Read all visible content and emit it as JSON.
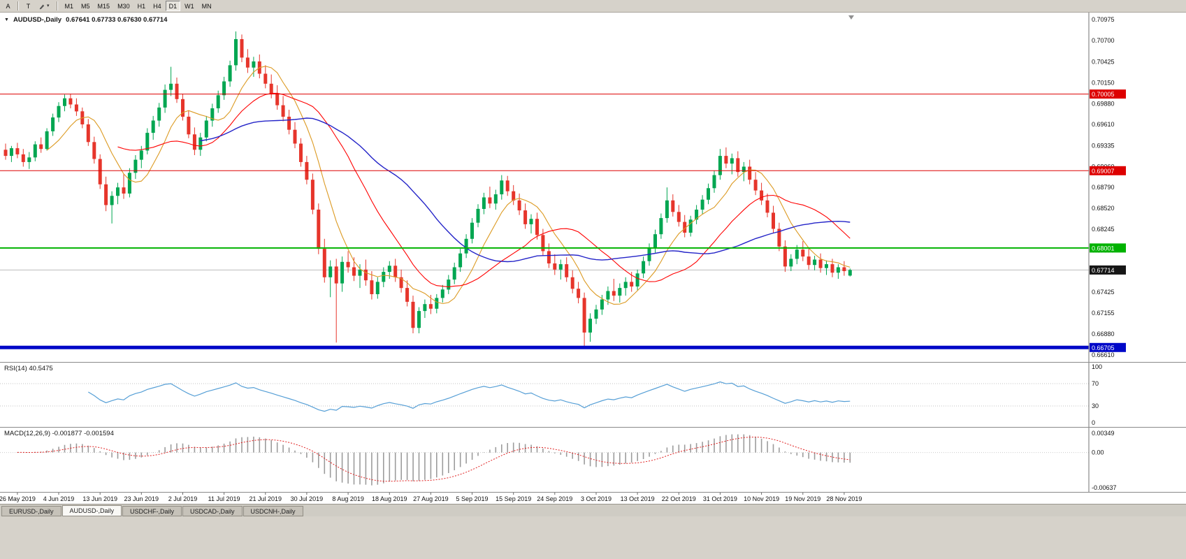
{
  "toolbar": {
    "button_a": "A",
    "button_t": "T",
    "dropdown_arrow": "▾",
    "timeframes": [
      "M1",
      "M5",
      "M15",
      "M30",
      "H1",
      "H4",
      "D1",
      "W1",
      "MN"
    ],
    "active_timeframe": "D1"
  },
  "chart": {
    "collapse_arrow": "▼",
    "symbol_title": "AUDUSD-,Daily",
    "ohlc": "0.67641 0.67733 0.67630 0.67714",
    "price_axis_labels": [
      "0.70975",
      "0.70700",
      "0.70425",
      "0.70150",
      "0.69880",
      "0.69610",
      "0.69335",
      "0.69060",
      "0.68790",
      "0.68520",
      "0.68245",
      "0.67970",
      "0.67700",
      "0.67425",
      "0.67155",
      "0.66880",
      "0.66610"
    ],
    "levels": [
      {
        "price": 0.70005,
        "label": "0.70005",
        "color": "#dd0000",
        "width": 1
      },
      {
        "price": 0.69007,
        "label": "0.69007",
        "color": "#dd0000",
        "width": 1
      },
      {
        "price": 0.68001,
        "label": "0.68001",
        "color": "#00b200",
        "width": 2
      },
      {
        "price": 0.66705,
        "label": "0.66705",
        "color": "#0008c8",
        "width": 5
      }
    ],
    "current_price": {
      "price": 0.67714,
      "label": "0.67714"
    },
    "colors": {
      "up": "#00a651",
      "down": "#e6352b",
      "ma_fast": "#dc9a22",
      "ma_mid": "#ff0000",
      "ma_slow": "#2424c8"
    }
  },
  "chart_data": {
    "type": "candlestick",
    "symbol": "AUDUSD",
    "timeframe": "Daily",
    "y_axis_range": [
      0.66335,
      0.70975
    ],
    "ohlc_format": [
      "open",
      "high",
      "low",
      "close"
    ],
    "x_tick_labels": [
      "26 May 2019",
      "4 Jun 2019",
      "13 Jun 2019",
      "23 Jun 2019",
      "2 Jul 2019",
      "11 Jul 2019",
      "21 Jul 2019",
      "30 Jul 2019",
      "8 Aug 2019",
      "18 Aug 2019",
      "27 Aug 2019",
      "5 Sep 2019",
      "15 Sep 2019",
      "24 Sep 2019",
      "3 Oct 2019",
      "13 Oct 2019",
      "22 Oct 2019",
      "31 Oct 2019",
      "10 Nov 2019",
      "19 Nov 2019",
      "28 Nov 2019"
    ],
    "x_tick_start_index": 2,
    "x_tick_every": 7,
    "indicators": {
      "ma_fast": 8,
      "ma_mid": 20,
      "ma_slow": 34
    },
    "candles": [
      [
        0.6928,
        0.6936,
        0.6915,
        0.692
      ],
      [
        0.692,
        0.6933,
        0.6912,
        0.693
      ],
      [
        0.693,
        0.6937,
        0.6917,
        0.6922
      ],
      [
        0.6922,
        0.6929,
        0.6906,
        0.6912
      ],
      [
        0.6912,
        0.6925,
        0.6903,
        0.6918
      ],
      [
        0.6918,
        0.6939,
        0.6913,
        0.6935
      ],
      [
        0.6935,
        0.6944,
        0.6924,
        0.6929
      ],
      [
        0.6929,
        0.6956,
        0.6927,
        0.6952
      ],
      [
        0.6952,
        0.6975,
        0.6946,
        0.697
      ],
      [
        0.697,
        0.699,
        0.6964,
        0.6985
      ],
      [
        0.6985,
        0.7,
        0.6978,
        0.6995
      ],
      [
        0.6995,
        0.7001,
        0.6982,
        0.6987
      ],
      [
        0.6987,
        0.6995,
        0.6972,
        0.6978
      ],
      [
        0.6978,
        0.6983,
        0.6956,
        0.6961
      ],
      [
        0.6961,
        0.6968,
        0.6933,
        0.6938
      ],
      [
        0.6938,
        0.6945,
        0.691,
        0.6916
      ],
      [
        0.6916,
        0.6922,
        0.6877,
        0.6883
      ],
      [
        0.6883,
        0.6893,
        0.6848,
        0.6856
      ],
      [
        0.6856,
        0.6874,
        0.6832,
        0.6868
      ],
      [
        0.6868,
        0.6885,
        0.6857,
        0.6879
      ],
      [
        0.6879,
        0.6896,
        0.6864,
        0.6871
      ],
      [
        0.6871,
        0.6904,
        0.6866,
        0.6898
      ],
      [
        0.6898,
        0.6921,
        0.689,
        0.6915
      ],
      [
        0.6915,
        0.6933,
        0.6904,
        0.6927
      ],
      [
        0.6927,
        0.6956,
        0.6922,
        0.695
      ],
      [
        0.695,
        0.6972,
        0.6941,
        0.6966
      ],
      [
        0.6966,
        0.6989,
        0.6958,
        0.6983
      ],
      [
        0.6983,
        0.7013,
        0.6976,
        0.7006
      ],
      [
        0.7006,
        0.7036,
        0.6998,
        0.7014
      ],
      [
        0.7014,
        0.7022,
        0.6989,
        0.6994
      ],
      [
        0.6994,
        0.7001,
        0.6966,
        0.6971
      ],
      [
        0.6971,
        0.6979,
        0.6943,
        0.6948
      ],
      [
        0.6948,
        0.6957,
        0.6921,
        0.6928
      ],
      [
        0.6928,
        0.695,
        0.692,
        0.6944
      ],
      [
        0.6944,
        0.6972,
        0.6939,
        0.6966
      ],
      [
        0.6966,
        0.6988,
        0.6958,
        0.6982
      ],
      [
        0.6982,
        0.7005,
        0.6976,
        0.6999
      ],
      [
        0.6999,
        0.7023,
        0.6993,
        0.7017
      ],
      [
        0.7017,
        0.7044,
        0.701,
        0.7038
      ],
      [
        0.7038,
        0.7082,
        0.7031,
        0.7072
      ],
      [
        0.7072,
        0.7078,
        0.7042,
        0.7048
      ],
      [
        0.7048,
        0.7059,
        0.7028,
        0.7035
      ],
      [
        0.7035,
        0.7049,
        0.7023,
        0.7043
      ],
      [
        0.7043,
        0.7052,
        0.7021,
        0.7027
      ],
      [
        0.7027,
        0.7038,
        0.7008,
        0.7014
      ],
      [
        0.7014,
        0.7026,
        0.6995,
        0.7001
      ],
      [
        0.7001,
        0.7012,
        0.698,
        0.6986
      ],
      [
        0.6986,
        0.6998,
        0.6965,
        0.6971
      ],
      [
        0.6971,
        0.698,
        0.6948,
        0.6954
      ],
      [
        0.6954,
        0.6964,
        0.693,
        0.6936
      ],
      [
        0.6936,
        0.6943,
        0.6906,
        0.6912
      ],
      [
        0.6912,
        0.692,
        0.6883,
        0.6889
      ],
      [
        0.6889,
        0.6897,
        0.6844,
        0.685
      ],
      [
        0.685,
        0.6858,
        0.6792,
        0.6799
      ],
      [
        0.6799,
        0.6812,
        0.6755,
        0.6762
      ],
      [
        0.6762,
        0.6784,
        0.6736,
        0.6776
      ],
      [
        0.6776,
        0.6786,
        0.6677,
        0.6754
      ],
      [
        0.6754,
        0.6789,
        0.6743,
        0.6782
      ],
      [
        0.6782,
        0.6796,
        0.6768,
        0.6775
      ],
      [
        0.6775,
        0.6788,
        0.6757,
        0.6764
      ],
      [
        0.6764,
        0.6779,
        0.6748,
        0.6772
      ],
      [
        0.6772,
        0.6785,
        0.6751,
        0.6758
      ],
      [
        0.6758,
        0.677,
        0.6733,
        0.674
      ],
      [
        0.674,
        0.6762,
        0.6734,
        0.6756
      ],
      [
        0.6756,
        0.6775,
        0.6749,
        0.6769
      ],
      [
        0.6769,
        0.6783,
        0.676,
        0.6777
      ],
      [
        0.6777,
        0.6786,
        0.6756,
        0.6762
      ],
      [
        0.6762,
        0.6772,
        0.6742,
        0.6748
      ],
      [
        0.6748,
        0.6758,
        0.6724,
        0.673
      ],
      [
        0.673,
        0.6738,
        0.6689,
        0.6696
      ],
      [
        0.6696,
        0.6723,
        0.6689,
        0.6718
      ],
      [
        0.6718,
        0.6733,
        0.6709,
        0.6727
      ],
      [
        0.6727,
        0.6739,
        0.6714,
        0.6721
      ],
      [
        0.6721,
        0.674,
        0.6715,
        0.6735
      ],
      [
        0.6735,
        0.6752,
        0.6729,
        0.6746
      ],
      [
        0.6746,
        0.6765,
        0.674,
        0.6759
      ],
      [
        0.6759,
        0.6781,
        0.6753,
        0.6775
      ],
      [
        0.6775,
        0.6799,
        0.6769,
        0.6793
      ],
      [
        0.6793,
        0.6818,
        0.6787,
        0.6812
      ],
      [
        0.6812,
        0.6839,
        0.6806,
        0.6833
      ],
      [
        0.6833,
        0.6857,
        0.6827,
        0.6851
      ],
      [
        0.6851,
        0.6872,
        0.6844,
        0.6866
      ],
      [
        0.6866,
        0.688,
        0.6852,
        0.6858
      ],
      [
        0.6858,
        0.6876,
        0.685,
        0.687
      ],
      [
        0.687,
        0.6895,
        0.6863,
        0.6888
      ],
      [
        0.6888,
        0.6894,
        0.6868,
        0.6874
      ],
      [
        0.6874,
        0.6882,
        0.6856,
        0.6862
      ],
      [
        0.6862,
        0.6871,
        0.6843,
        0.6849
      ],
      [
        0.6849,
        0.6858,
        0.6825,
        0.6831
      ],
      [
        0.6831,
        0.6844,
        0.6819,
        0.6838
      ],
      [
        0.6838,
        0.6846,
        0.6811,
        0.6817
      ],
      [
        0.6817,
        0.6825,
        0.679,
        0.6796
      ],
      [
        0.6796,
        0.6806,
        0.6774,
        0.678
      ],
      [
        0.678,
        0.6792,
        0.6765,
        0.6772
      ],
      [
        0.6772,
        0.6785,
        0.6759,
        0.6779
      ],
      [
        0.6779,
        0.6788,
        0.6756,
        0.6762
      ],
      [
        0.6762,
        0.6771,
        0.6741,
        0.6747
      ],
      [
        0.6747,
        0.6756,
        0.6728,
        0.6735
      ],
      [
        0.6735,
        0.6742,
        0.66705,
        0.669
      ],
      [
        0.669,
        0.6715,
        0.6678,
        0.6708
      ],
      [
        0.6708,
        0.6726,
        0.6701,
        0.672
      ],
      [
        0.672,
        0.6739,
        0.6713,
        0.6733
      ],
      [
        0.6733,
        0.675,
        0.6726,
        0.6744
      ],
      [
        0.6744,
        0.676,
        0.6731,
        0.6738
      ],
      [
        0.6738,
        0.6754,
        0.6729,
        0.6748
      ],
      [
        0.6748,
        0.6762,
        0.6738,
        0.6756
      ],
      [
        0.6756,
        0.6769,
        0.6743,
        0.675
      ],
      [
        0.675,
        0.6772,
        0.6745,
        0.6767
      ],
      [
        0.6767,
        0.6789,
        0.6761,
        0.6783
      ],
      [
        0.6783,
        0.6806,
        0.6777,
        0.68
      ],
      [
        0.68,
        0.6824,
        0.6794,
        0.6818
      ],
      [
        0.6818,
        0.6845,
        0.6812,
        0.6839
      ],
      [
        0.6839,
        0.6879,
        0.6833,
        0.6862
      ],
      [
        0.6862,
        0.687,
        0.6841,
        0.6847
      ],
      [
        0.6847,
        0.6856,
        0.6828,
        0.6834
      ],
      [
        0.6834,
        0.6843,
        0.6814,
        0.682
      ],
      [
        0.682,
        0.6842,
        0.6815,
        0.6837
      ],
      [
        0.6837,
        0.6856,
        0.6831,
        0.685
      ],
      [
        0.685,
        0.6869,
        0.6844,
        0.6863
      ],
      [
        0.6863,
        0.6884,
        0.6857,
        0.6878
      ],
      [
        0.6878,
        0.6901,
        0.6872,
        0.6895
      ],
      [
        0.6895,
        0.6929,
        0.6889,
        0.692
      ],
      [
        0.692,
        0.6931,
        0.6904,
        0.691
      ],
      [
        0.691,
        0.6923,
        0.6896,
        0.6917
      ],
      [
        0.6917,
        0.6926,
        0.6893,
        0.6899
      ],
      [
        0.6899,
        0.6912,
        0.6887,
        0.6906
      ],
      [
        0.6906,
        0.6915,
        0.6883,
        0.6889
      ],
      [
        0.6889,
        0.6899,
        0.6869,
        0.6875
      ],
      [
        0.6875,
        0.6885,
        0.6856,
        0.6862
      ],
      [
        0.6862,
        0.6871,
        0.684,
        0.6846
      ],
      [
        0.6846,
        0.6855,
        0.6819,
        0.6825
      ],
      [
        0.6825,
        0.6833,
        0.6796,
        0.6802
      ],
      [
        0.6802,
        0.681,
        0.6769,
        0.6776
      ],
      [
        0.6776,
        0.6792,
        0.677,
        0.6786
      ],
      [
        0.6786,
        0.6804,
        0.6779,
        0.6798
      ],
      [
        0.6798,
        0.6809,
        0.6783,
        0.6789
      ],
      [
        0.6789,
        0.6799,
        0.6772,
        0.6778
      ],
      [
        0.6778,
        0.679,
        0.6771,
        0.6785
      ],
      [
        0.6785,
        0.6793,
        0.6768,
        0.6774
      ],
      [
        0.6774,
        0.6784,
        0.6765,
        0.6779
      ],
      [
        0.6779,
        0.6786,
        0.6762,
        0.6768
      ],
      [
        0.6768,
        0.6779,
        0.676,
        0.6775
      ],
      [
        0.6775,
        0.6783,
        0.6764,
        0.677
      ],
      [
        0.67641,
        0.67733,
        0.6763,
        0.67714
      ]
    ]
  },
  "rsi_panel": {
    "label": "RSI(14)",
    "value": "40.5475",
    "period": 14,
    "line_color": "#569fd6",
    "levels": [
      70,
      30
    ],
    "axis": [
      {
        "label": "100",
        "value": 100
      },
      {
        "label": "70",
        "value": 70
      },
      {
        "label": "30",
        "value": 30
      },
      {
        "label": "0",
        "value": 0
      }
    ]
  },
  "macd_panel": {
    "label": "MACD(12,26,9)",
    "values": "-0.001877 -0.001594",
    "fast": 12,
    "slow": 26,
    "signal_period": 9,
    "axis_max": 0.00349,
    "axis_min": -0.00637,
    "axis": [
      {
        "label": "0.00349",
        "value": 0.00349
      },
      {
        "label": "0.00",
        "value": 0
      },
      {
        "label": "-0.00637",
        "value": -0.00637
      }
    ]
  },
  "tabs": {
    "items": [
      "EURUSD-,Daily",
      "AUDUSD-,Daily",
      "USDCHF-,Daily",
      "USDCAD-,Daily",
      "USDCNH-,Daily"
    ],
    "active_index": 1
  }
}
